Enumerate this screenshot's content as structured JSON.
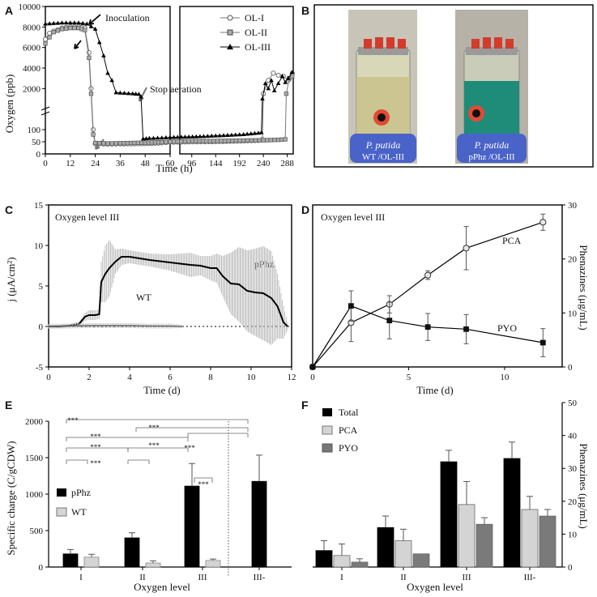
{
  "panels": {
    "A": {
      "letter": "A",
      "chart_data": {
        "type": "line",
        "xlabel": "Time (h)",
        "ylabel": "Oxygen (ppb)",
        "x_ticks_left": [
          "0",
          "12",
          "24",
          "36",
          "48",
          "60"
        ],
        "x_ticks_right": [
          "96",
          "144",
          "192",
          "240",
          "288"
        ],
        "y_ticks_upper": [
          "2000",
          "4000",
          "6000",
          "8000",
          "10000"
        ],
        "y_ticks_lower": [
          "0",
          "50",
          "100"
        ],
        "legend": [
          "OL-I",
          "OL-II",
          "OL-III"
        ],
        "annotations": [
          "Inoculation",
          "Stop aeration"
        ],
        "series": [
          {
            "name": "OL-I",
            "marker": "open-circle",
            "points": [
              [
                0,
                6800
              ],
              [
                2,
                7400
              ],
              [
                4,
                7600
              ],
              [
                8,
                7900
              ],
              [
                12,
                8000
              ],
              [
                16,
                8000
              ],
              [
                19,
                7900
              ],
              [
                21,
                5500
              ],
              [
                22,
                2000
              ],
              [
                23,
                100
              ],
              [
                24,
                42
              ],
              [
                30,
                40
              ],
              [
                36,
                41
              ],
              [
                48,
                42
              ],
              [
                56,
                45
              ],
              [
                60,
                48
              ],
              [
                90,
                49
              ],
              [
                130,
                50
              ],
              [
                180,
                52
              ],
              [
                230,
                55
              ],
              [
                238,
                60
              ],
              [
                240,
                1500
              ],
              [
                250,
                2800
              ],
              [
                260,
                3500
              ],
              [
                270,
                3300
              ],
              [
                280,
                3200
              ],
              [
                290,
                2800
              ],
              [
                298,
                3500
              ]
            ]
          },
          {
            "name": "OL-II",
            "marker": "open-square",
            "points": [
              [
                0,
                6400
              ],
              [
                2,
                7000
              ],
              [
                4,
                7500
              ],
              [
                8,
                7800
              ],
              [
                12,
                7900
              ],
              [
                16,
                7900
              ],
              [
                19,
                7700
              ],
              [
                21,
                5000
              ],
              [
                22,
                1500
              ],
              [
                23,
                80
              ],
              [
                24,
                45
              ],
              [
                30,
                43
              ],
              [
                36,
                44
              ],
              [
                48,
                46
              ],
              [
                56,
                48
              ],
              [
                60,
                50
              ],
              [
                90,
                52
              ],
              [
                140,
                53
              ],
              [
                200,
                55
              ],
              [
                240,
                56
              ],
              [
                270,
                58
              ],
              [
                284,
                60
              ],
              [
                286,
                1500
              ],
              [
                292,
                3000
              ],
              [
                298,
                3200
              ]
            ]
          },
          {
            "name": "OL-III",
            "marker": "filled-triangle",
            "points": [
              [
                0,
                8300
              ],
              [
                4,
                8350
              ],
              [
                8,
                8400
              ],
              [
                12,
                8400
              ],
              [
                16,
                8400
              ],
              [
                20,
                8300
              ],
              [
                24,
                7800
              ],
              [
                26,
                6500
              ],
              [
                28,
                5200
              ],
              [
                30,
                3500
              ],
              [
                32,
                2800
              ],
              [
                34,
                1600
              ],
              [
                38,
                1550
              ],
              [
                42,
                1500
              ],
              [
                45,
                1450
              ],
              [
                46,
                1200
              ],
              [
                47,
                62
              ],
              [
                50,
                64
              ],
              [
                56,
                66
              ],
              [
                60,
                68
              ],
              [
                90,
                70
              ],
              [
                120,
                72
              ],
              [
                160,
                76
              ],
              [
                200,
                80
              ],
              [
                230,
                86
              ],
              [
                236,
                88
              ],
              [
                238,
                1000
              ],
              [
                244,
                2500
              ],
              [
                250,
                2000
              ],
              [
                256,
                2800
              ],
              [
                262,
                1800
              ],
              [
                270,
                2500
              ],
              [
                278,
                3200
              ],
              [
                284,
                2600
              ],
              [
                290,
                3000
              ],
              [
                298,
                3600
              ]
            ]
          }
        ]
      }
    },
    "B": {
      "letter": "B",
      "photo_labels": [
        {
          "species": "P. putida",
          "strain": "WT /OL-III"
        },
        {
          "species": "P. putida",
          "strain": "pPhz /OL-III"
        }
      ]
    },
    "C": {
      "letter": "C",
      "chart_data": {
        "type": "line",
        "title": "Oxygen level III",
        "xlabel": "Time (d)",
        "ylabel": "j (μA/cm²)",
        "xlim": [
          0,
          12
        ],
        "ylim": [
          -5,
          15
        ],
        "x_ticks": [
          "0",
          "2",
          "4",
          "6",
          "8",
          "10",
          "12"
        ],
        "y_ticks": [
          "-5",
          "0",
          "5",
          "10",
          "15"
        ],
        "series": [
          {
            "name": "pPhz",
            "x": [
              0,
              0.5,
              1,
              1.5,
              1.8,
              2.0,
              2.3,
              2.5,
              2.6,
              2.8,
              3.0,
              3.3,
              3.6,
              4.0,
              5.0,
              6.0,
              7.0,
              7.5,
              8.0,
              8.3,
              8.6,
              9.0,
              9.4,
              9.8,
              10.2,
              10.6,
              11.0,
              11.3,
              11.6,
              11.8
            ],
            "y": [
              0,
              0,
              0.1,
              0.3,
              1.2,
              1.4,
              1.4,
              1.5,
              5.5,
              6.5,
              7.2,
              8.0,
              8.6,
              8.6,
              8.2,
              7.9,
              7.6,
              7.5,
              7.2,
              7.2,
              6.2,
              5.3,
              5.2,
              4.4,
              4.2,
              4.1,
              3.5,
              2.5,
              0.5,
              0
            ],
            "err": [
              0.2,
              0.2,
              0.2,
              0.3,
              0.5,
              0.6,
              0.6,
              0.6,
              2.5,
              3.5,
              3.5,
              1.5,
              1.0,
              0.8,
              0.8,
              1.0,
              1.5,
              1.2,
              1.5,
              1.8,
              2.5,
              3.8,
              4.6,
              5.0,
              5.4,
              5.8,
              5.8,
              4.0,
              2.0,
              0.5
            ]
          },
          {
            "name": "WT",
            "x": [
              0,
              1,
              2,
              3,
              4,
              5,
              6,
              6.6
            ],
            "y": [
              0,
              0.05,
              0.1,
              0.1,
              0.1,
              0.05,
              0.05,
              0
            ],
            "err": [
              0.3,
              0.3,
              0.3,
              0.3,
              0.3,
              0.3,
              0.3,
              0.2
            ]
          }
        ]
      }
    },
    "D": {
      "letter": "D",
      "chart_data": {
        "type": "line",
        "title": "Oxygen level III",
        "xlabel": "Time (d)",
        "ylabel": "Phenazines (μg/mL)",
        "xlim": [
          0,
          13
        ],
        "ylim": [
          0,
          30
        ],
        "x_ticks": [
          "0",
          "5",
          "10"
        ],
        "y_ticks": [
          "0",
          "10",
          "20",
          "30"
        ],
        "series": [
          {
            "name": "PCA",
            "marker": "open-circle",
            "x": [
              0,
              2,
              4,
              6,
              8,
              12
            ],
            "y": [
              0,
              8.2,
              11.6,
              17.0,
              22.0,
              26.8
            ],
            "err": [
              0,
              3.5,
              1.6,
              0.8,
              4.0,
              1.5
            ]
          },
          {
            "name": "PYO",
            "marker": "filled-square",
            "x": [
              0,
              2,
              4,
              6,
              8,
              12
            ],
            "y": [
              0,
              11.3,
              8.6,
              7.4,
              7.0,
              4.5
            ],
            "err": [
              0,
              2.8,
              3.4,
              2.5,
              2.7,
              2.6
            ]
          }
        ]
      }
    },
    "E": {
      "letter": "E",
      "chart_data": {
        "type": "bar",
        "xlabel": "Oxygen level",
        "ylabel": "Specific charge (C/gCDW)",
        "ylim": [
          0,
          2000
        ],
        "y_ticks": [
          "0",
          "500",
          "1000",
          "1500",
          "2000"
        ],
        "categories": [
          "I",
          "II",
          "III",
          "III-"
        ],
        "series": [
          {
            "name": "pPhz",
            "values": [
              180,
              400,
              1110,
              1175
            ],
            "err": [
              60,
              70,
              310,
              360
            ]
          },
          {
            "name": "WT",
            "values": [
              135,
              55,
              90,
              null
            ],
            "err": [
              40,
              30,
              20,
              null
            ]
          }
        ],
        "significance": [
          "***",
          "***",
          "***",
          "***",
          "***",
          "***",
          "***",
          "***"
        ]
      }
    },
    "F": {
      "letter": "F",
      "chart_data": {
        "type": "bar",
        "xlabel": "Oxygen level",
        "ylabel": "Phenazines (μg/mL)",
        "ylim": [
          0,
          50
        ],
        "y_ticks": [
          "0",
          "10",
          "20",
          "30",
          "40",
          "50"
        ],
        "categories": [
          "I",
          "II",
          "III",
          "III-"
        ],
        "series": [
          {
            "name": "Total",
            "values": [
              5,
              12,
              32,
              33
            ],
            "err": [
              3,
              3.5,
              3.5,
              5
            ]
          },
          {
            "name": "PCA",
            "values": [
              3.5,
              8,
              19,
              17.5
            ],
            "err": [
              3.5,
              3.5,
              7,
              4
            ]
          },
          {
            "name": "PYO",
            "values": [
              1.5,
              4,
              13,
              15.5
            ],
            "err": [
              1,
              0,
              2,
              2
            ]
          }
        ]
      }
    }
  }
}
